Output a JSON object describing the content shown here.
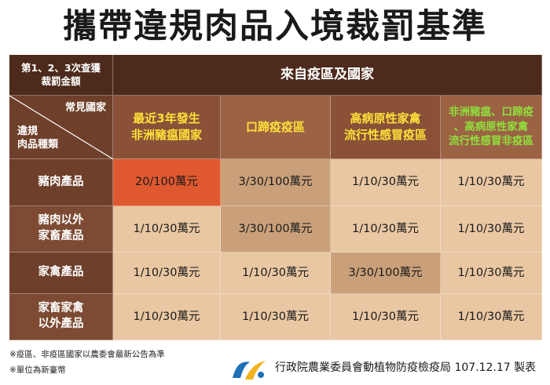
{
  "title": "攜帶違規肉品入境裁罰基準",
  "table": {
    "corner_top": [
      "第1、2、3次查獲",
      "裁罰金額"
    ],
    "region_header": "來自疫區及國家",
    "diag_top": "常見國家",
    "diag_bottom": [
      "違規",
      "肉品種類"
    ],
    "columns": [
      [
        "最近3年發生",
        "非洲豬瘟國家"
      ],
      [
        "口蹄疫疫區"
      ],
      [
        "高病原性家禽",
        "流行性感冒疫區"
      ],
      [
        "非洲豬瘟、口蹄疫",
        "、高病原性家禽",
        "流行性感冒非疫區"
      ]
    ],
    "rows": [
      {
        "label": [
          "豬肉產品"
        ],
        "values": [
          "20/100萬元",
          "3/30/100萬元",
          "1/10/30萬元",
          "1/10/30萬元"
        ]
      },
      {
        "label": [
          "豬肉以外",
          "家畜產品"
        ],
        "values": [
          "1/10/30萬元",
          "3/30/100萬元",
          "1/10/30萬元",
          "1/10/30萬元"
        ]
      },
      {
        "label": [
          "家禽產品"
        ],
        "values": [
          "1/10/30萬元",
          "1/10/30萬元",
          "3/30/100萬元",
          "1/10/30萬元"
        ]
      },
      {
        "label": [
          "家畜家禽",
          "以外產品"
        ],
        "values": [
          "1/10/30萬元",
          "1/10/30萬元",
          "1/10/30萬元",
          "1/10/30萬元"
        ]
      }
    ]
  },
  "notes": [
    "※疫區、非疫區國家以農委會最新公告為準",
    "※單位為新臺幣"
  ],
  "issuer": "行政院農業委員會動植物防疫檢疫局 107.12.17 製表",
  "colors": {
    "header_dark": "#4d2a1c",
    "header_brown": "#6e3f2a",
    "highlight_red": "#e0582f",
    "highlight_tan": "#c9a07a",
    "body_light": "#e9c7a3",
    "label_yellow": "#ffe23a",
    "label_green": "#8fe03c"
  }
}
